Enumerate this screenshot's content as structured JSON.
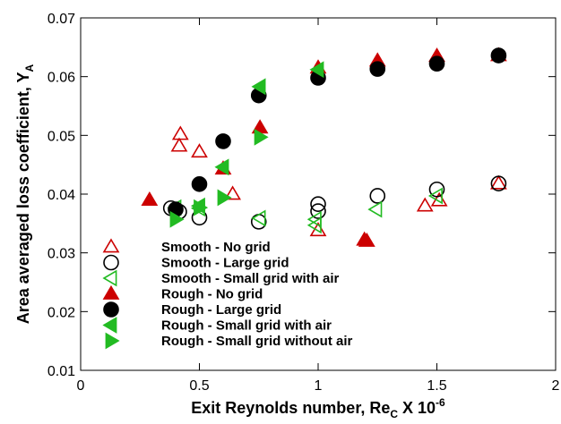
{
  "chart_data": {
    "type": "scatter",
    "xlabel": {
      "text": "Exit Reynolds number, Re",
      "sub": "C",
      "mid": " X 10",
      "sup": "-6"
    },
    "ylabel": {
      "text": "Area averaged loss coefficient, Y",
      "sub": "A"
    },
    "xlim": [
      0,
      2
    ],
    "xticks": [
      0,
      0.5,
      1,
      1.5,
      2
    ],
    "ylim": [
      0.01,
      0.07
    ],
    "yticks": [
      0.01,
      0.02,
      0.03,
      0.04,
      0.05,
      0.06,
      0.07
    ],
    "legend": "lower left",
    "series": [
      {
        "name": "Smooth - No grid",
        "color": "#cc0000",
        "marker": "triangle-up",
        "filled": false,
        "x": [
          0.42,
          0.415,
          0.5,
          0.64,
          1.0,
          1.45,
          1.51,
          1.76
        ],
        "values": [
          0.0502,
          0.0482,
          0.0472,
          0.04,
          0.0338,
          0.038,
          0.0389,
          0.0418
        ]
      },
      {
        "name": "Smooth - Large grid",
        "color": "#000000",
        "marker": "circle",
        "filled": false,
        "x": [
          0.38,
          0.415,
          0.5,
          0.75,
          1.0,
          1.0,
          1.25,
          1.5,
          1.76
        ],
        "values": [
          0.0376,
          0.037,
          0.036,
          0.0353,
          0.0383,
          0.0371,
          0.0397,
          0.0408,
          0.0418
        ]
      },
      {
        "name": "Smooth - Small grid with air",
        "color": "#22bb22",
        "marker": "triangle-left",
        "filled": false,
        "x": [
          0.4,
          0.5,
          0.755,
          0.99,
          0.99,
          1.245,
          1.5
        ],
        "values": [
          0.0377,
          0.0376,
          0.0359,
          0.0357,
          0.0347,
          0.0374,
          0.0397
        ]
      },
      {
        "name": "Rough - No grid",
        "color": "#cc0000",
        "marker": "triangle-up",
        "filled": true,
        "x": [
          0.29,
          0.6,
          0.755,
          1.0,
          1.25,
          1.5,
          1.76,
          1.195,
          1.205
        ],
        "values": [
          0.039,
          0.0443,
          0.0513,
          0.0615,
          0.0627,
          0.0635,
          0.0636,
          0.0322,
          0.032
        ]
      },
      {
        "name": "Rough - Large grid",
        "color": "#000000",
        "marker": "circle",
        "filled": true,
        "x": [
          0.4,
          0.5,
          0.6,
          0.75,
          1.0,
          1.25,
          1.5,
          1.76
        ],
        "values": [
          0.0374,
          0.0417,
          0.049,
          0.0568,
          0.0598,
          0.0613,
          0.0622,
          0.0636
        ]
      },
      {
        "name": "Rough - Small grid with air",
        "color": "#22bb22",
        "marker": "triangle-left",
        "filled": true,
        "x": [
          0.5,
          0.6,
          0.755,
          1.0
        ],
        "values": [
          0.038,
          0.0446,
          0.0583,
          0.0612
        ]
      },
      {
        "name": "Rough - Small grid without air",
        "color": "#22bb22",
        "marker": "triangle-right",
        "filled": true,
        "x": [
          0.4,
          0.5,
          0.6,
          0.755
        ],
        "values": [
          0.0357,
          0.0377,
          0.0394,
          0.0497
        ]
      }
    ]
  }
}
